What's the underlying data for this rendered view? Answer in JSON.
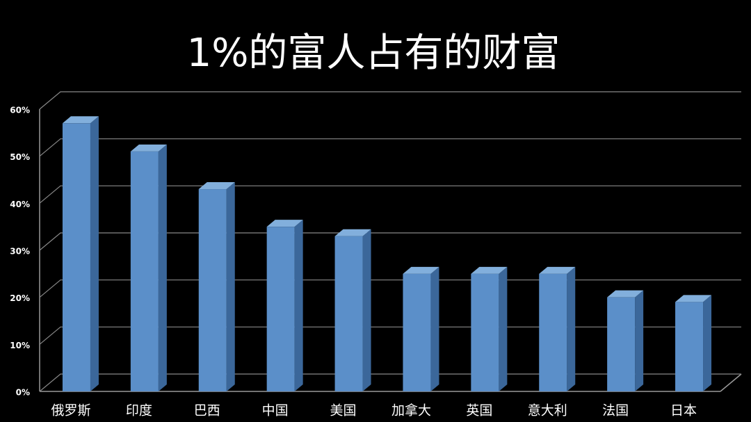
{
  "chart_data": {
    "type": "bar3d",
    "title": "1%的富人占有的财富",
    "categories": [
      "俄罗斯",
      "印度",
      "巴西",
      "中国",
      "美国",
      "加拿大",
      "英国",
      "意大利",
      "法国",
      "日本"
    ],
    "values": [
      57,
      51,
      43,
      35,
      33,
      25,
      25,
      25,
      20,
      19
    ],
    "color": "#5b8fc9",
    "ylim": [
      0,
      60
    ],
    "yticks": [
      {
        "value": 0,
        "label": "0%"
      },
      {
        "value": 10,
        "label": "10%"
      },
      {
        "value": 20,
        "label": "20%"
      },
      {
        "value": 30,
        "label": "30%"
      },
      {
        "value": 40,
        "label": "40%"
      },
      {
        "value": 50,
        "label": "50%"
      },
      {
        "value": 60,
        "label": "60%"
      }
    ],
    "grid": true
  }
}
